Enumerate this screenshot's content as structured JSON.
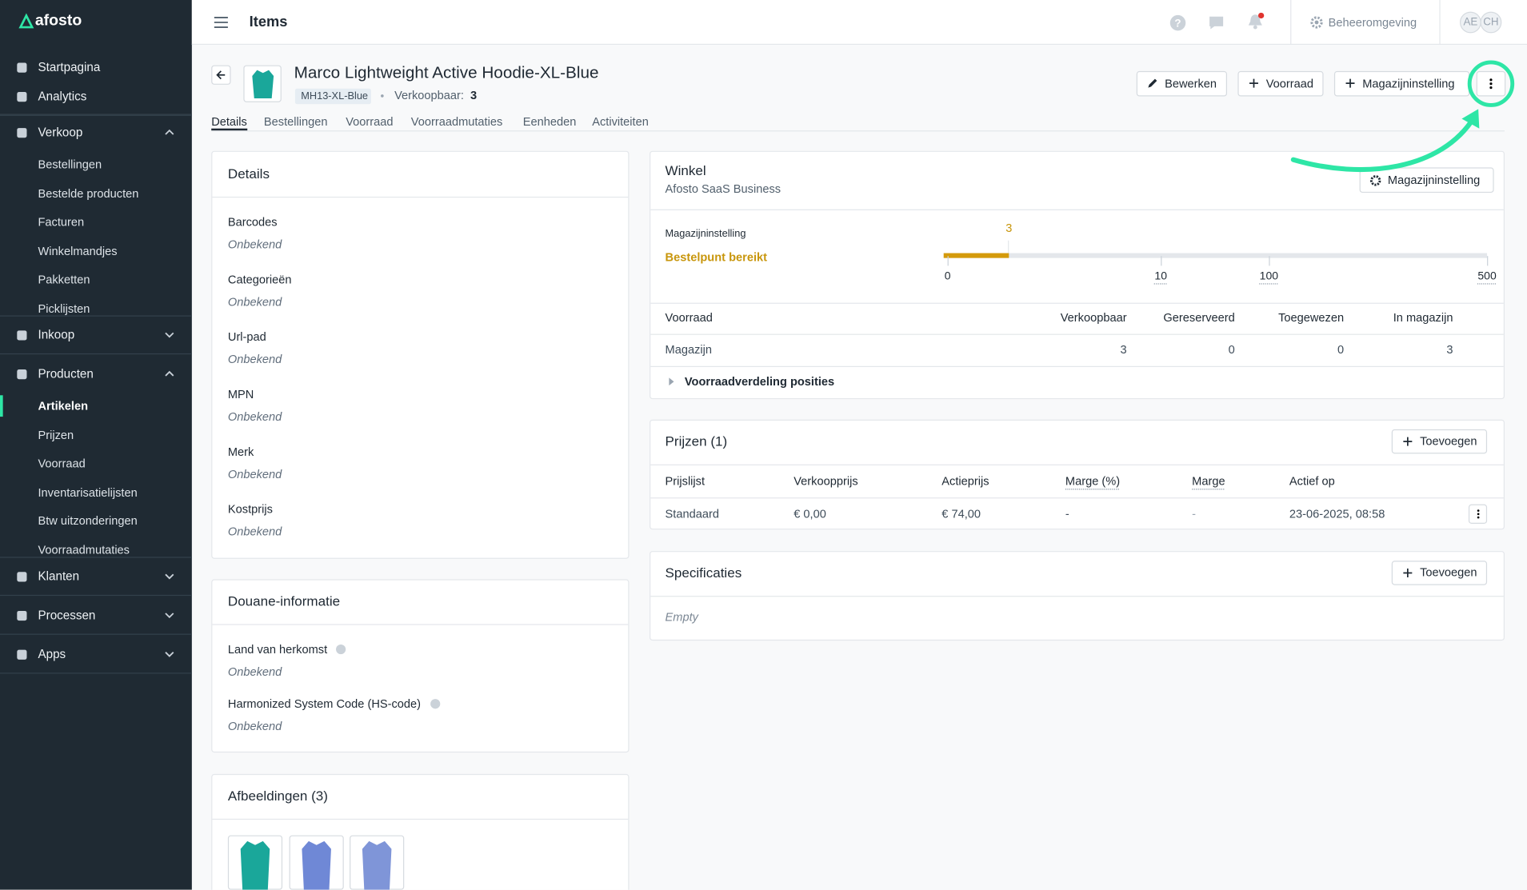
{
  "sidebar": {
    "logo": "afosto",
    "nav": [
      {
        "label": "Startpagina"
      },
      {
        "label": "Analytics"
      },
      {
        "label": "Verkoop",
        "children": [
          "Bestellingen",
          "Bestelde producten",
          "Facturen",
          "Winkelmandjes",
          "Pakketten",
          "Picklijsten"
        ]
      },
      {
        "label": "Inkoop"
      },
      {
        "label": "Producten",
        "children": [
          "Artikelen",
          "Prijzen",
          "Voorraad",
          "Inventarisatielijsten",
          "Btw uitzonderingen",
          "Voorraadmutaties"
        ]
      },
      {
        "label": "Klanten"
      },
      {
        "label": "Processen"
      },
      {
        "label": "Apps"
      }
    ]
  },
  "topbar": {
    "title": "Items",
    "environment": "Beheeromgeving",
    "avatars": [
      "AE",
      "CH"
    ]
  },
  "product": {
    "title": "Marco Lightweight Active Hoodie-XL-Blue",
    "sku": "MH13-XL-Blue",
    "available_label": "Verkoopbaar:",
    "available": 3,
    "actions": [
      "Bewerken",
      "Voorraad",
      "Magazijninstelling"
    ],
    "tabs": [
      "Details",
      "Bestellingen",
      "Voorraad",
      "Voorraadmutaties",
      "Eenheden",
      "Activiteiten"
    ]
  },
  "details": {
    "title": "Details",
    "fields": [
      {
        "label": "Barcodes",
        "value": "Onbekend"
      },
      {
        "label": "Categorieën",
        "value": "Onbekend"
      },
      {
        "label": "Url-pad",
        "value": "Onbekend"
      },
      {
        "label": "MPN",
        "value": "Onbekend"
      },
      {
        "label": "Merk",
        "value": "Onbekend"
      },
      {
        "label": "Kostprijs",
        "value": "Onbekend"
      }
    ]
  },
  "customs": {
    "title": "Douane-informatie",
    "fields": [
      {
        "label": "Land van herkomst",
        "value": "Onbekend"
      },
      {
        "label": "Harmonized System Code (HS-code)",
        "value": "Onbekend"
      }
    ]
  },
  "images": {
    "title": "Afbeeldingen (3)"
  },
  "store": {
    "title": "Winkel",
    "subtitle": "Afosto SaaS Business",
    "button": "Magazijninstelling",
    "meter": {
      "label": "Magazijninstelling",
      "status": "Bestelpunt bereikt",
      "current": 3,
      "ticks": [
        0,
        10,
        100,
        500
      ]
    },
    "table": {
      "headers": [
        "Voorraad",
        "Verkoopbaar",
        "Gereserveerd",
        "Toegewezen",
        "In magazijn"
      ],
      "rows": [
        [
          "Magazijn",
          3,
          0,
          0,
          3
        ]
      ]
    },
    "expand": "Voorraadverdeling posities"
  },
  "prices": {
    "title": "Prijzen (1)",
    "button": "Toevoegen",
    "headers": [
      "Prijslijst",
      "Verkoopprijs",
      "Actieprijs",
      "Marge (%)",
      "Marge",
      "Actief op"
    ],
    "rows": [
      [
        "Standaard",
        "€ 0,00",
        "€ 74,00",
        "-",
        "-",
        "23-06-2025, 08:58"
      ]
    ]
  },
  "specs": {
    "title": "Specificaties",
    "button": "Toevoegen",
    "empty": "Empty"
  }
}
